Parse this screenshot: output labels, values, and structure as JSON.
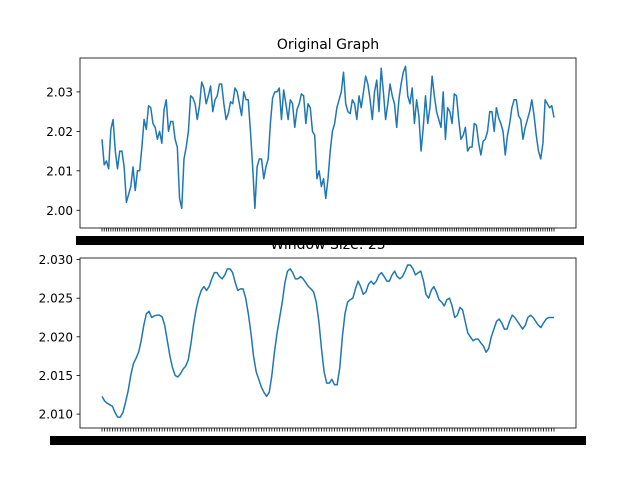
{
  "chart_data": [
    {
      "type": "line",
      "title": "Original Graph",
      "xlabel": "",
      "ylabel": "",
      "ylim": [
        1.9955,
        2.0386
      ],
      "yticks": [
        2.0,
        2.01,
        2.02,
        2.03
      ],
      "ytick_labels": [
        "2.00",
        "2.01",
        "2.02",
        "2.03"
      ],
      "xtick_labels_note": "dense overlapping date labels, illegible",
      "color": "#1f77b4",
      "series": [
        {
          "values": [
            2.018,
            2.0115,
            2.0125,
            2.0105,
            2.0205,
            2.023,
            2.015,
            2.0105,
            2.015,
            2.015,
            2.011,
            2.002,
            2.004,
            2.006,
            2.011,
            2.005,
            2.01,
            2.01,
            2.016,
            2.023,
            2.0205,
            2.0265,
            2.026,
            2.022,
            2.021,
            2.018,
            2.02,
            2.017,
            2.0255,
            2.028,
            2.02,
            2.0225,
            2.0225,
            2.018,
            2.016,
            2.003,
            2.0005,
            2.013,
            2.016,
            2.02,
            2.029,
            2.0285,
            2.027,
            2.023,
            2.0265,
            2.0325,
            2.031,
            2.027,
            2.029,
            2.0315,
            2.025,
            2.028,
            2.029,
            2.032,
            2.032,
            2.027,
            2.023,
            2.0245,
            2.0275,
            2.027,
            2.031,
            2.03,
            2.027,
            2.024,
            2.03,
            2.028,
            2.028,
            2.02,
            2.011,
            2.0005,
            2.011,
            2.013,
            2.013,
            2.008,
            2.011,
            2.013,
            2.022,
            2.0285,
            2.03,
            2.03,
            2.031,
            2.023,
            2.0305,
            2.027,
            2.023,
            2.028,
            2.027,
            2.021,
            2.0255,
            2.027,
            2.0295,
            2.029,
            2.022,
            2.027,
            2.026,
            2.02,
            2.019,
            2.008,
            2.01,
            2.006,
            2.008,
            2.003,
            2.008,
            2.015,
            2.02,
            2.022,
            2.026,
            2.028,
            2.03,
            2.035,
            2.027,
            2.025,
            2.0245,
            2.028,
            2.027,
            2.023,
            2.029,
            2.026,
            2.03,
            2.034,
            2.032,
            2.028,
            2.023,
            2.03,
            2.033,
            2.025,
            2.036,
            2.03,
            2.023,
            2.027,
            2.032,
            2.029,
            2.027,
            2.021,
            2.028,
            2.032,
            2.035,
            2.0365,
            2.029,
            2.027,
            2.031,
            2.022,
            2.028,
            2.024,
            2.015,
            2.021,
            2.029,
            2.022,
            2.026,
            2.034,
            2.029,
            2.025,
            2.023,
            2.021,
            2.03,
            2.018,
            2.026,
            2.025,
            2.022,
            2.0295,
            2.029,
            2.023,
            2.018,
            2.019,
            2.021,
            2.015,
            2.016,
            2.016,
            2.022,
            2.0215,
            2.017,
            2.014,
            2.0175,
            2.018,
            2.02,
            2.025,
            2.025,
            2.02,
            2.026,
            2.0235,
            2.022,
            2.02,
            2.014,
            2.019,
            2.022,
            2.026,
            2.028,
            2.028,
            2.024,
            2.023,
            2.018,
            2.021,
            2.023,
            2.025,
            2.028,
            2.024,
            2.019,
            2.015,
            2.013,
            2.017,
            2.028,
            2.027,
            2.026,
            2.0265,
            2.0235
          ]
        }
      ]
    },
    {
      "type": "line",
      "title": "Window Size: 25",
      "xlabel": "",
      "ylabel": "",
      "ylim": [
        2.0082,
        2.0302
      ],
      "yticks": [
        2.01,
        2.015,
        2.02,
        2.025,
        2.03
      ],
      "ytick_labels": [
        "2.010",
        "2.015",
        "2.020",
        "2.025",
        "2.030"
      ],
      "xtick_labels_note": "dense overlapping date labels, illegible",
      "color": "#1f77b4",
      "series": [
        {
          "values": [
            2.0123,
            2.0117,
            2.0114,
            2.0112,
            2.011,
            2.0102,
            2.0096,
            2.0096,
            2.0102,
            2.0115,
            2.013,
            2.015,
            2.0165,
            2.0172,
            2.018,
            2.0195,
            2.0215,
            2.023,
            2.0233,
            2.0225,
            2.0227,
            2.0228,
            2.0228,
            2.0226,
            2.0215,
            2.0195,
            2.0175,
            2.016,
            2.015,
            2.0148,
            2.0152,
            2.0158,
            2.0162,
            2.017,
            2.019,
            2.0215,
            2.0235,
            2.025,
            2.026,
            2.0265,
            2.026,
            2.0265,
            2.0275,
            2.0283,
            2.0283,
            2.0278,
            2.0275,
            2.028,
            2.0288,
            2.0288,
            2.0283,
            2.027,
            2.026,
            2.0262,
            2.0262,
            2.025,
            2.023,
            2.0205,
            2.0175,
            2.0155,
            2.0145,
            2.0135,
            2.0128,
            2.0123,
            2.0128,
            2.015,
            2.018,
            2.0205,
            2.0225,
            2.0245,
            2.027,
            2.0285,
            2.0288,
            2.0283,
            2.0275,
            2.0275,
            2.0278,
            2.0275,
            2.027,
            2.0265,
            2.0262,
            2.0258,
            2.0245,
            2.022,
            2.0185,
            2.0155,
            2.014,
            2.014,
            2.0145,
            2.0138,
            2.0138,
            2.016,
            2.02,
            2.023,
            2.0245,
            2.0248,
            2.025,
            2.0262,
            2.0272,
            2.0265,
            2.0255,
            2.0258,
            2.0268,
            2.0272,
            2.0268,
            2.0272,
            2.028,
            2.0283,
            2.0278,
            2.0272,
            2.0272,
            2.028,
            2.0285,
            2.0278,
            2.0275,
            2.0278,
            2.0285,
            2.0293,
            2.0293,
            2.0288,
            2.028,
            2.0283,
            2.0285,
            2.0273,
            2.0255,
            2.025,
            2.026,
            2.0265,
            2.0258,
            2.0248,
            2.0245,
            2.024,
            2.0248,
            2.025,
            2.024,
            2.0225,
            2.0228,
            2.0238,
            2.0235,
            2.022,
            2.0205,
            2.02,
            2.0195,
            2.0197,
            2.0197,
            2.0192,
            2.0188,
            2.018,
            2.0185,
            2.02,
            2.021,
            2.022,
            2.0223,
            2.0218,
            2.021,
            2.021,
            2.022,
            2.0228,
            2.0225,
            2.022,
            2.0215,
            2.021,
            2.0215,
            2.0225,
            2.0228,
            2.0225,
            2.022,
            2.0215,
            2.0212,
            2.0218,
            2.0223,
            2.0225,
            2.0225,
            2.0225
          ]
        }
      ]
    }
  ]
}
